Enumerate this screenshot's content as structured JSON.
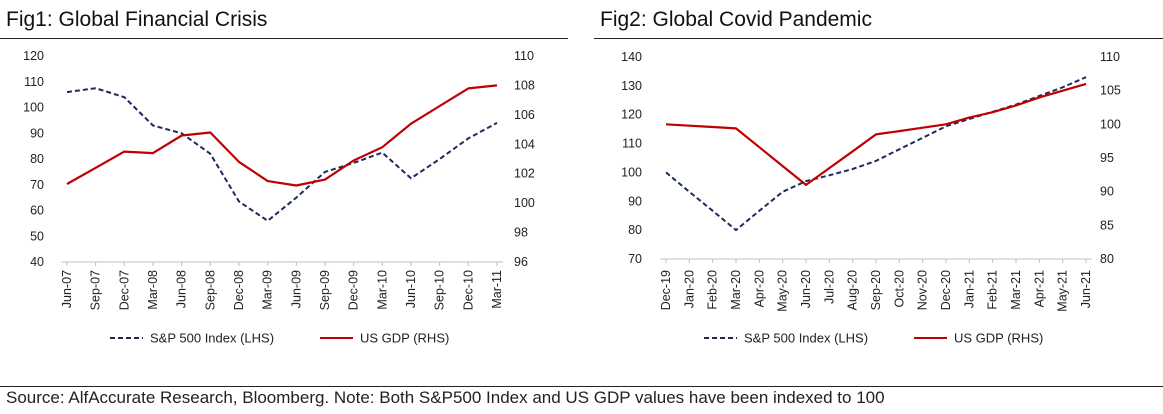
{
  "source_note": "Source: AlfAccurate Research, Bloomberg. Note: Both S&P500 Index and US GDP values have been indexed to 100",
  "colors": {
    "sp500": "#1f2a5c",
    "gdp": "#c00000"
  },
  "chart_data": [
    {
      "type": "line",
      "title": "Fig1: Global Financial Crisis",
      "categories": [
        "Jun-07",
        "Sep-07",
        "Dec-07",
        "Mar-08",
        "Jun-08",
        "Sep-08",
        "Dec-08",
        "Mar-09",
        "Jun-09",
        "Sep-09",
        "Dec-09",
        "Mar-10",
        "Jun-10",
        "Sep-10",
        "Dec-10",
        "Mar-11"
      ],
      "series": [
        {
          "name": "S&P 500 Index (LHS)",
          "axis": "left",
          "style": "dashed",
          "values": [
            106,
            107.5,
            104,
            93,
            90,
            82,
            63.5,
            56,
            65,
            75,
            78.5,
            82.5,
            72.5,
            80,
            88,
            94
          ]
        },
        {
          "name": "US GDP (RHS)",
          "axis": "right",
          "style": "solid",
          "values": [
            101.3,
            102.4,
            103.5,
            103.4,
            104.6,
            104.8,
            102.8,
            101.5,
            101.2,
            101.6,
            102.9,
            103.8,
            105.4,
            106.6,
            107.8,
            108
          ]
        }
      ],
      "ylim_left": [
        40,
        120
      ],
      "yticks_left": [
        40,
        50,
        60,
        70,
        80,
        90,
        100,
        110,
        120
      ],
      "ylim_right": [
        96,
        110
      ],
      "yticks_right": [
        96,
        98,
        100,
        102,
        104,
        106,
        108,
        110
      ],
      "legend": "bottom",
      "grid": false
    },
    {
      "type": "line",
      "title": "Fig2: Global Covid Pandemic",
      "categories": [
        "Dec-19",
        "Jan-20",
        "Feb-20",
        "Mar-20",
        "Apr-20",
        "May-20",
        "Jun-20",
        "Jul-20",
        "Aug-20",
        "Sep-20",
        "Oct-20",
        "Nov-20",
        "Dec-20",
        "Jan-21",
        "Feb-21",
        "Mar-21",
        "Apr-21",
        "May-21",
        "Jun-21"
      ],
      "series": [
        {
          "name": "S&P 500 Index (LHS)",
          "axis": "left",
          "style": "dashed",
          "values": [
            100,
            93.3,
            86.7,
            80,
            86.7,
            93.3,
            97,
            99,
            101.2,
            104,
            108,
            112,
            116,
            118.5,
            121,
            123.5,
            126.5,
            129.5,
            133
          ]
        },
        {
          "name": "US GDP (RHS)",
          "axis": "right",
          "style": "solid",
          "values": [
            100,
            99.8,
            99.6,
            99.4,
            96.6,
            93.8,
            91,
            93.5,
            96,
            98.5,
            99,
            99.5,
            100,
            101,
            101.8,
            102.8,
            104,
            105,
            106
          ]
        }
      ],
      "ylim_left": [
        70,
        140
      ],
      "yticks_left": [
        70,
        80,
        90,
        100,
        110,
        120,
        130,
        140
      ],
      "ylim_right": [
        80,
        110
      ],
      "yticks_right": [
        80,
        85,
        90,
        95,
        100,
        105,
        110
      ],
      "legend": "bottom",
      "grid": false
    }
  ]
}
